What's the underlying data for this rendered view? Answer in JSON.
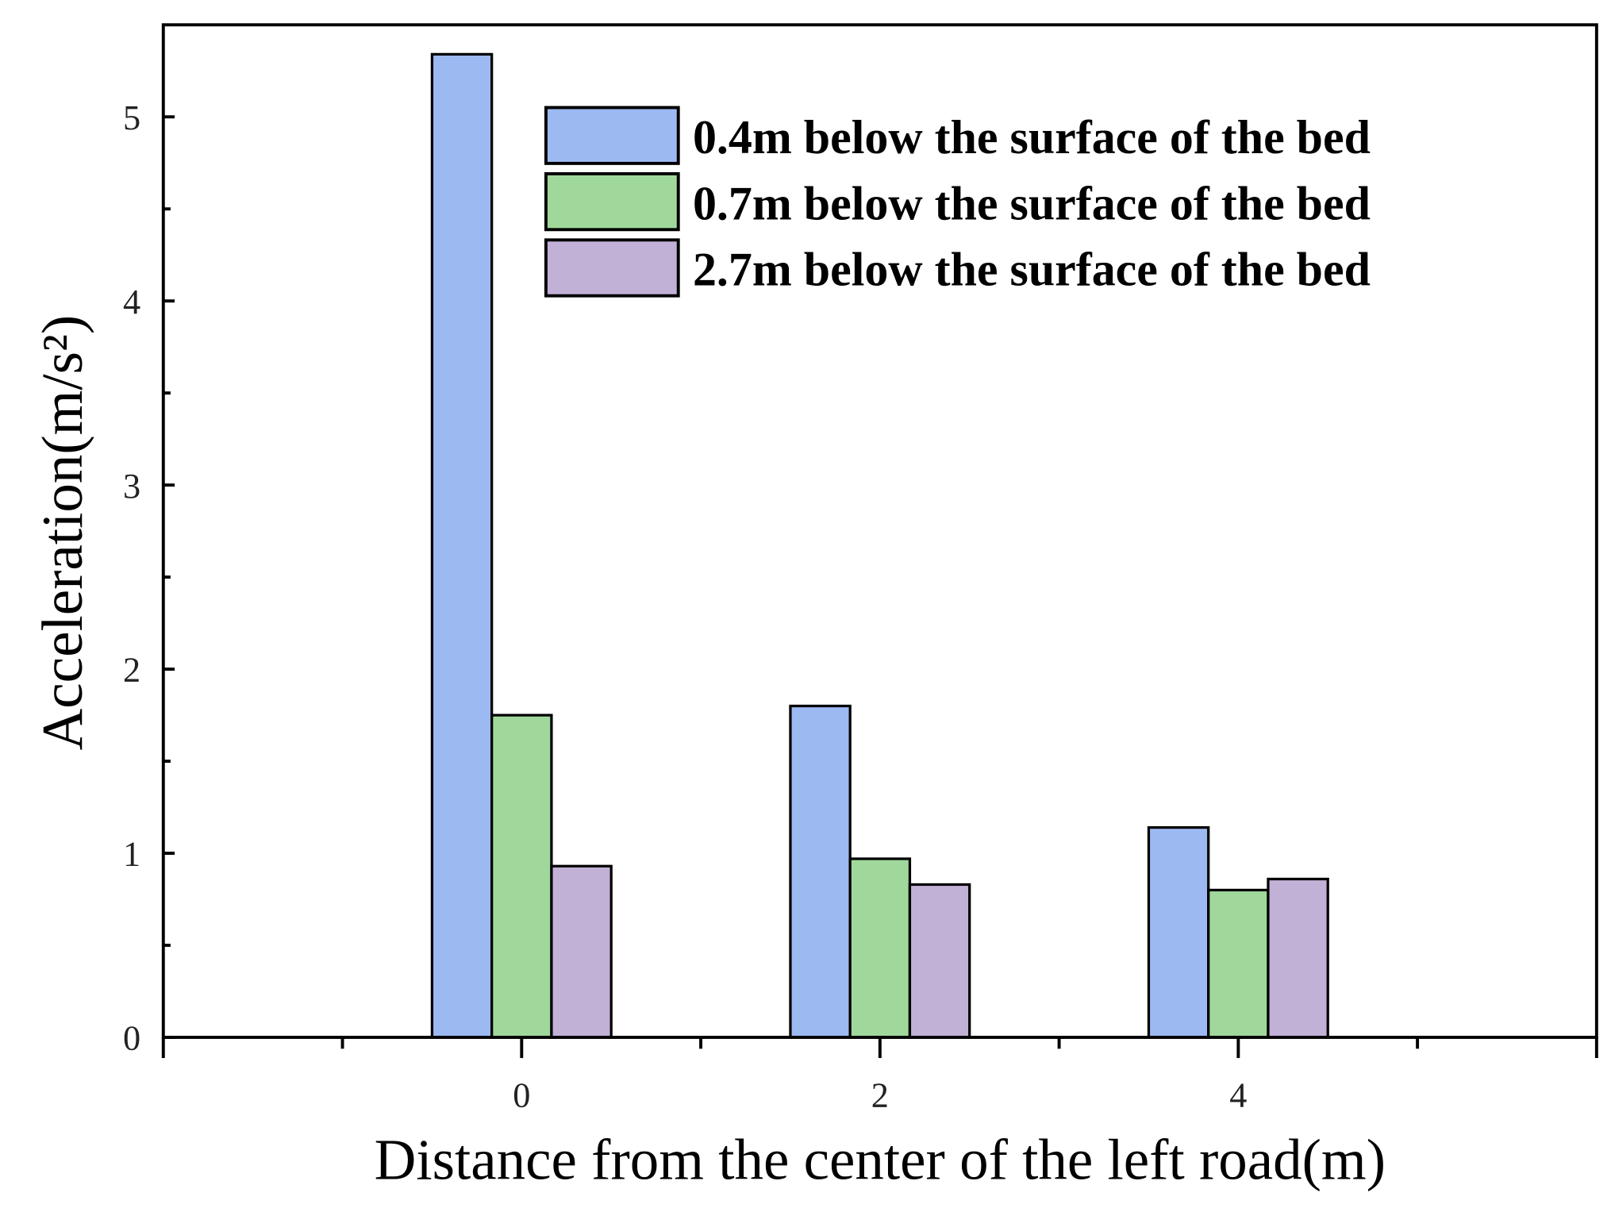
{
  "chart_data": {
    "type": "bar",
    "x_label": "Distance from the center of the left road(m)",
    "y_label": "Acceleration(m/s²)",
    "x": [
      0,
      2,
      4
    ],
    "series": [
      {
        "name": "0.4m below the surface of the bed",
        "color": "#9db9f2",
        "values": [
          5.34,
          1.8,
          1.14
        ]
      },
      {
        "name": "0.7m below the surface of the bed",
        "color": "#a0d89c",
        "values": [
          1.75,
          0.97,
          0.8
        ]
      },
      {
        "name": "2.7m below the surface of the bed",
        "color": "#c2b1d6",
        "values": [
          0.93,
          0.83,
          0.86
        ]
      }
    ],
    "xlim": [
      -2,
      6
    ],
    "xticks": [
      0,
      2,
      4
    ],
    "xminorticks": [
      -1,
      1,
      3,
      5
    ],
    "ylim": [
      0,
      5.5
    ],
    "yticks": [
      0,
      1,
      2,
      3,
      4,
      5
    ],
    "yminorticks": [
      0.5,
      1.5,
      2.5,
      3.5,
      4.5
    ],
    "legend": "upper right",
    "grid": false
  }
}
